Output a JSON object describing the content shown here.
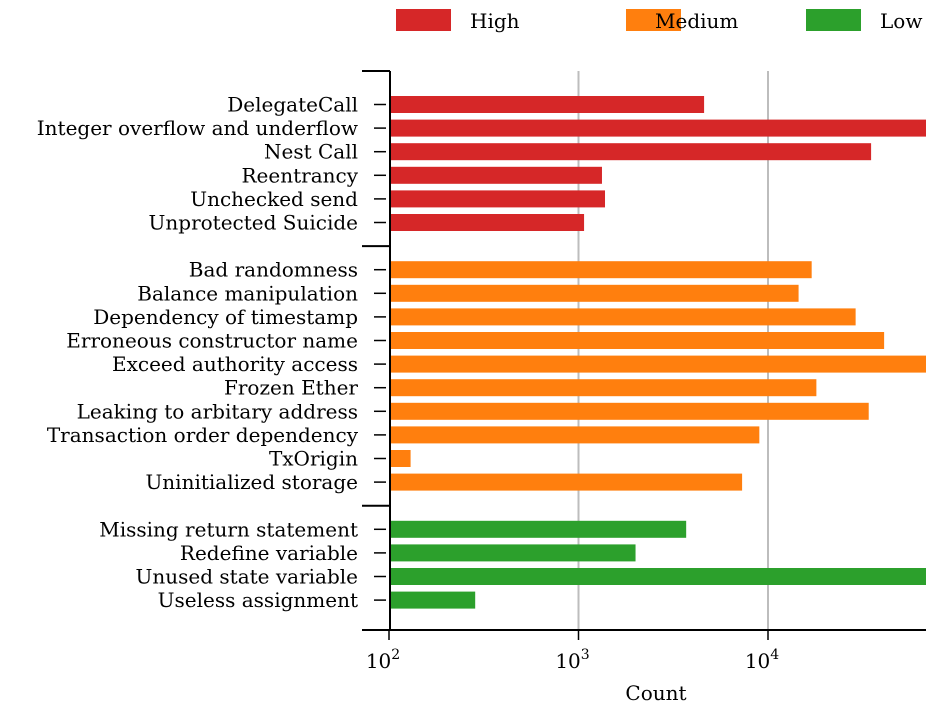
{
  "chart_data": {
    "type": "bar",
    "orientation": "horizontal",
    "xscale": "log",
    "xlabel": "Count",
    "xlim": [
      100,
      70000
    ],
    "xticks": [
      {
        "value": 100,
        "base": "10",
        "exp": "2"
      },
      {
        "value": 1000,
        "base": "10",
        "exp": "3"
      },
      {
        "value": 10000,
        "base": "10",
        "exp": "4"
      }
    ],
    "grid": "vertical lines at 10^3 and 10^4",
    "legend": {
      "placement": "top",
      "entries": [
        {
          "label": "High",
          "color": "#d62728"
        },
        {
          "label": "Medium",
          "color": "#ff7f0e"
        },
        {
          "label": "Low",
          "color": "#2ca02c"
        }
      ]
    },
    "groups": [
      {
        "name": "High",
        "color": "#d62728",
        "items": [
          {
            "label": "DelegateCall",
            "value": 4600
          },
          {
            "label": "Integer overflow and underflow",
            "value": 70000
          },
          {
            "label": "Nest Call",
            "value": 35000
          },
          {
            "label": "Reentrancy",
            "value": 1330
          },
          {
            "label": "Unchecked send",
            "value": 1380
          },
          {
            "label": "Unprotected Suicide",
            "value": 1070
          }
        ]
      },
      {
        "name": "Medium",
        "color": "#ff7f0e",
        "items": [
          {
            "label": "Bad randomness",
            "value": 17000
          },
          {
            "label": "Balance manipulation",
            "value": 14500
          },
          {
            "label": "Dependency of timestamp",
            "value": 29000
          },
          {
            "label": "Erroneous constructor name",
            "value": 41000
          },
          {
            "label": "Exceed authority access",
            "value": 70000
          },
          {
            "label": "Frozen Ether",
            "value": 18000
          },
          {
            "label": "Leaking to arbitary address",
            "value": 34000
          },
          {
            "label": "Transaction order dependency",
            "value": 9000
          },
          {
            "label": "TxOrigin",
            "value": 130
          },
          {
            "label": "Uninitialized storage",
            "value": 7300
          }
        ]
      },
      {
        "name": "Low",
        "color": "#2ca02c",
        "items": [
          {
            "label": "Missing return statement",
            "value": 3700
          },
          {
            "label": "Redefine variable",
            "value": 2000
          },
          {
            "label": "Unused state variable",
            "value": 70000
          },
          {
            "label": "Useless assignment",
            "value": 285
          }
        ]
      }
    ]
  }
}
